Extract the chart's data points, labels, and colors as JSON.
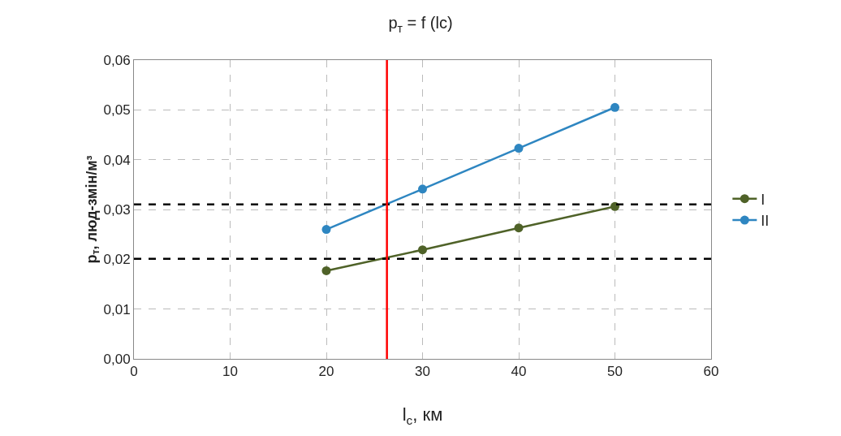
{
  "chart_data": {
    "type": "line",
    "title": "p$_{т}$ = f (lc)",
    "xlabel": "l$_{c}$, км",
    "ylabel": "p$_{т}$, люд-змін/м³",
    "x": [
      20,
      30,
      40,
      50
    ],
    "series": [
      {
        "name": "I",
        "color": "#4f6228",
        "values": [
          0.0177,
          0.0219,
          0.0263,
          0.0306
        ]
      },
      {
        "name": "II",
        "color": "#2e86c1",
        "values": [
          0.026,
          0.0341,
          0.0423,
          0.0505
        ]
      }
    ],
    "xlim": [
      0,
      60
    ],
    "xticks": [
      0,
      10,
      20,
      30,
      40,
      50,
      60
    ],
    "ylim": [
      0,
      0.06
    ],
    "yticks": [
      {
        "value": 0,
        "label": "0,00"
      },
      {
        "value": 0.01,
        "label": "0,01"
      },
      {
        "value": 0.02,
        "label": "0,02"
      },
      {
        "value": 0.03,
        "label": "0,03"
      },
      {
        "value": 0.04,
        "label": "0,04"
      },
      {
        "value": 0.05,
        "label": "0,05"
      },
      {
        "value": 0.06,
        "label": "0,06"
      }
    ],
    "ref_lines": [
      {
        "axis": "y",
        "value": 0.031,
        "color": "#000000",
        "line_style": "dashed"
      },
      {
        "axis": "y",
        "value": 0.0201,
        "color": "#000000",
        "line_style": "dashed"
      },
      {
        "axis": "x",
        "value": 26.3,
        "color": "#ff0000",
        "line_style": "solid"
      }
    ],
    "grid": true,
    "legend": "right",
    "marker": "circle",
    "line_style": "solid"
  }
}
